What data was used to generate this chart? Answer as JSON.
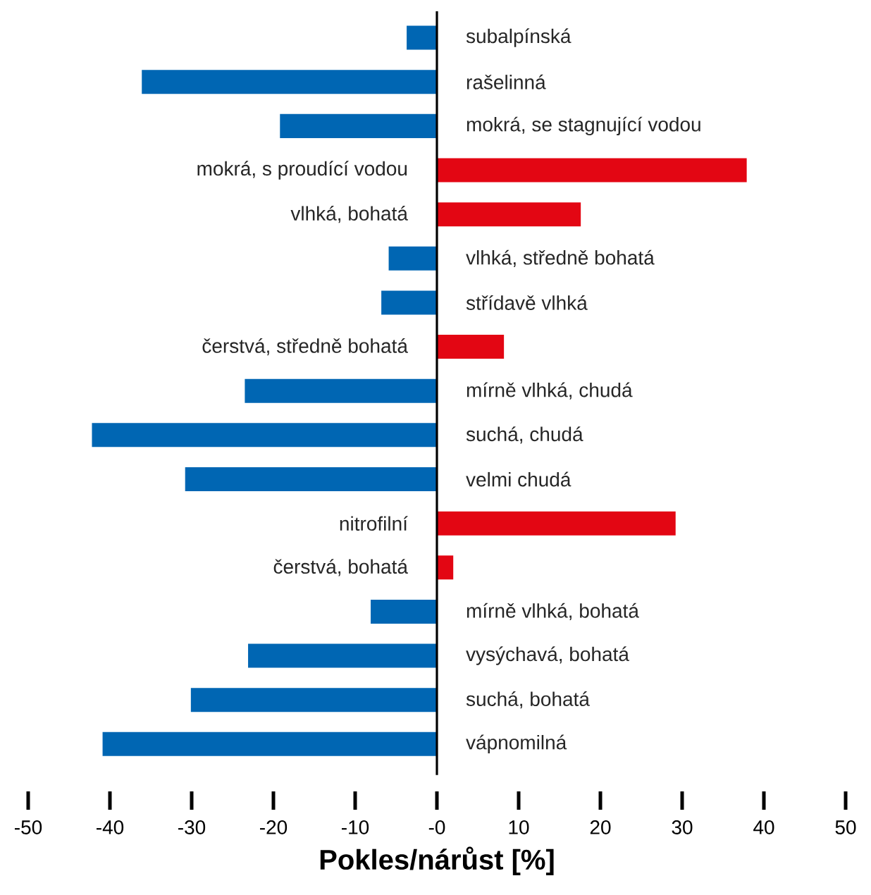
{
  "chart_data": {
    "type": "bar",
    "orientation": "horizontal",
    "xlabel": "Pokles/nárůst [%]",
    "categories": [
      "subalpínská",
      "rašelinná",
      "mokrá, se stagnující vodou",
      "mokrá, s proudící vodou",
      "vlhká, bohatá",
      "vlhká, středně bohatá",
      "střídavě vlhká",
      "čerstvá, středně bohatá",
      "mírně vlhká, chudá",
      "suchá, chudá",
      "velmi chudá",
      "nitrofilní",
      "čerstvá, bohatá",
      "mírně vlhká, bohatá",
      "vysýchavá, bohatá",
      "suchá, bohatá",
      "vápnomilná"
    ],
    "values": [
      -3.7,
      -36.1,
      -19.2,
      37.9,
      17.6,
      -5.9,
      -6.8,
      8.2,
      -23.5,
      -42.2,
      -30.8,
      29.2,
      2.0,
      -8.1,
      -23.1,
      -30.1,
      -40.9
    ],
    "colors": [
      "#0066b3",
      "#0066b3",
      "#0066b3",
      "#e30613",
      "#e30613",
      "#0066b3",
      "#0066b3",
      "#e30613",
      "#0066b3",
      "#0066b3",
      "#0066b3",
      "#e30613",
      "#e30613",
      "#0066b3",
      "#0066b3",
      "#0066b3",
      "#0066b3"
    ],
    "xlim": [
      -50,
      50
    ],
    "xticks": [
      -50,
      -40,
      -30,
      -20,
      -10,
      {
        "value": 0,
        "label": "-0"
      },
      10,
      20,
      30,
      40,
      50
    ]
  }
}
